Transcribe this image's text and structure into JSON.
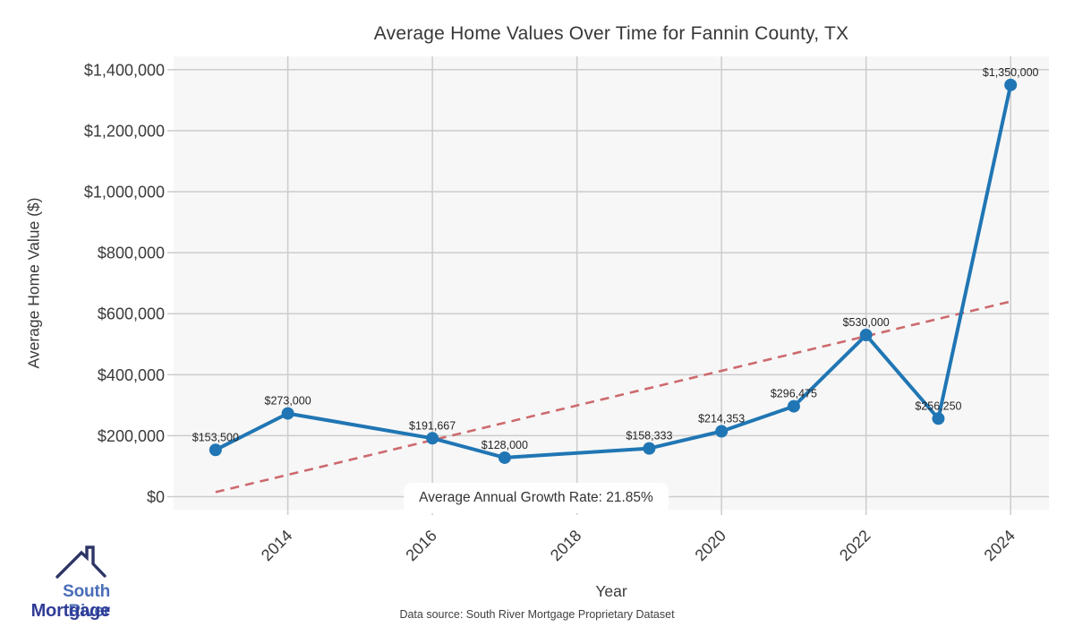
{
  "chart_data": {
    "type": "line",
    "title": "Average Home Values Over Time for Fannin County, TX",
    "xlabel": "Year",
    "ylabel": "Average Home Value ($)",
    "series": [
      {
        "name": "Average Home Value",
        "x": [
          2013,
          2014,
          2016,
          2017,
          2019,
          2020,
          2021,
          2022,
          2023,
          2024
        ],
        "values": [
          153500,
          273000,
          191667,
          128000,
          158333,
          214353,
          296475,
          530000,
          256250,
          1350000
        ],
        "point_labels": [
          "$153,500",
          "$273,000",
          "$191,667",
          "$128,000",
          "$158,333",
          "$214,353",
          "$296,475",
          "$530,000",
          "$256,250",
          "$1,350,000"
        ]
      }
    ],
    "trend_line": {
      "x": [
        2013,
        2024
      ],
      "values": [
        15000,
        640000
      ],
      "style": "dashed"
    },
    "annotation": "Average Annual Growth Rate: 21.85%",
    "x_ticks": {
      "values": [
        2014,
        2016,
        2018,
        2020,
        2022,
        2024
      ],
      "labels": [
        "2014",
        "2016",
        "2018",
        "2020",
        "2022",
        "2024"
      ]
    },
    "y_ticks": {
      "values": [
        0,
        200000,
        400000,
        600000,
        800000,
        1000000,
        1200000,
        1400000
      ],
      "labels": [
        "$0",
        "$200,000",
        "$400,000",
        "$600,000",
        "$800,000",
        "$1,000,000",
        "$1,200,000",
        "$1,400,000"
      ]
    },
    "xlim": [
      2012.42,
      2024.53
    ],
    "ylim": [
      -42500,
      1443500
    ],
    "grid": true,
    "legend": "none",
    "colors": {
      "series": "#2076b4",
      "trend": "#cd6a6e",
      "grid": "#cccccc",
      "plot_background": "#f7f7f7",
      "tick_text": "#3a3a3a",
      "label_text": "#262626",
      "annotation_background": "#ffffff"
    }
  },
  "logo": {
    "line1": "South River",
    "line2": "Mortgage",
    "icon": "house-roof-icon",
    "colors": {
      "line1": "#4a6db8",
      "line2": "#313c96",
      "roof": "#2d3566"
    }
  },
  "footer": {
    "note": "Data source: South River Mortgage Proprietary Dataset"
  }
}
